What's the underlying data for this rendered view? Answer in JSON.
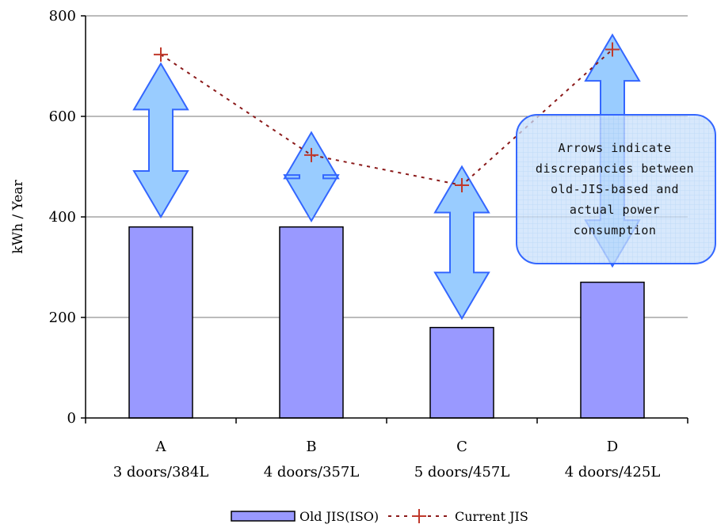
{
  "chart_data": {
    "type": "bar",
    "ylabel": "kWh / Year",
    "ylim": [
      0,
      800
    ],
    "yticks": [
      0,
      200,
      400,
      600,
      800
    ],
    "grid": true,
    "categories": [
      {
        "letter": "A",
        "desc": "3 doors/384L"
      },
      {
        "letter": "B",
        "desc": "4 doors/357L"
      },
      {
        "letter": "C",
        "desc": "5 doors/457L"
      },
      {
        "letter": "D",
        "desc": "4 doors/425L"
      }
    ],
    "series": [
      {
        "name": "Old JIS(ISO)",
        "type": "bar",
        "color": "#9999ff",
        "values": [
          380,
          380,
          180,
          270
        ]
      },
      {
        "name": "Current JIS",
        "type": "line",
        "color": "#8b1a1a",
        "values": [
          723,
          523,
          463,
          733
        ]
      }
    ],
    "arrows": [
      {
        "from": 400,
        "to": 705
      },
      {
        "from": 392,
        "to": 568
      },
      {
        "from": 198,
        "to": 500
      },
      {
        "from": 302,
        "to": 762
      }
    ],
    "annotation": {
      "lines": [
        "Arrows indicate",
        "discrepancies between",
        "old-JIS-based and",
        "actual power",
        "consumption"
      ]
    },
    "legend_position": "bottom"
  }
}
